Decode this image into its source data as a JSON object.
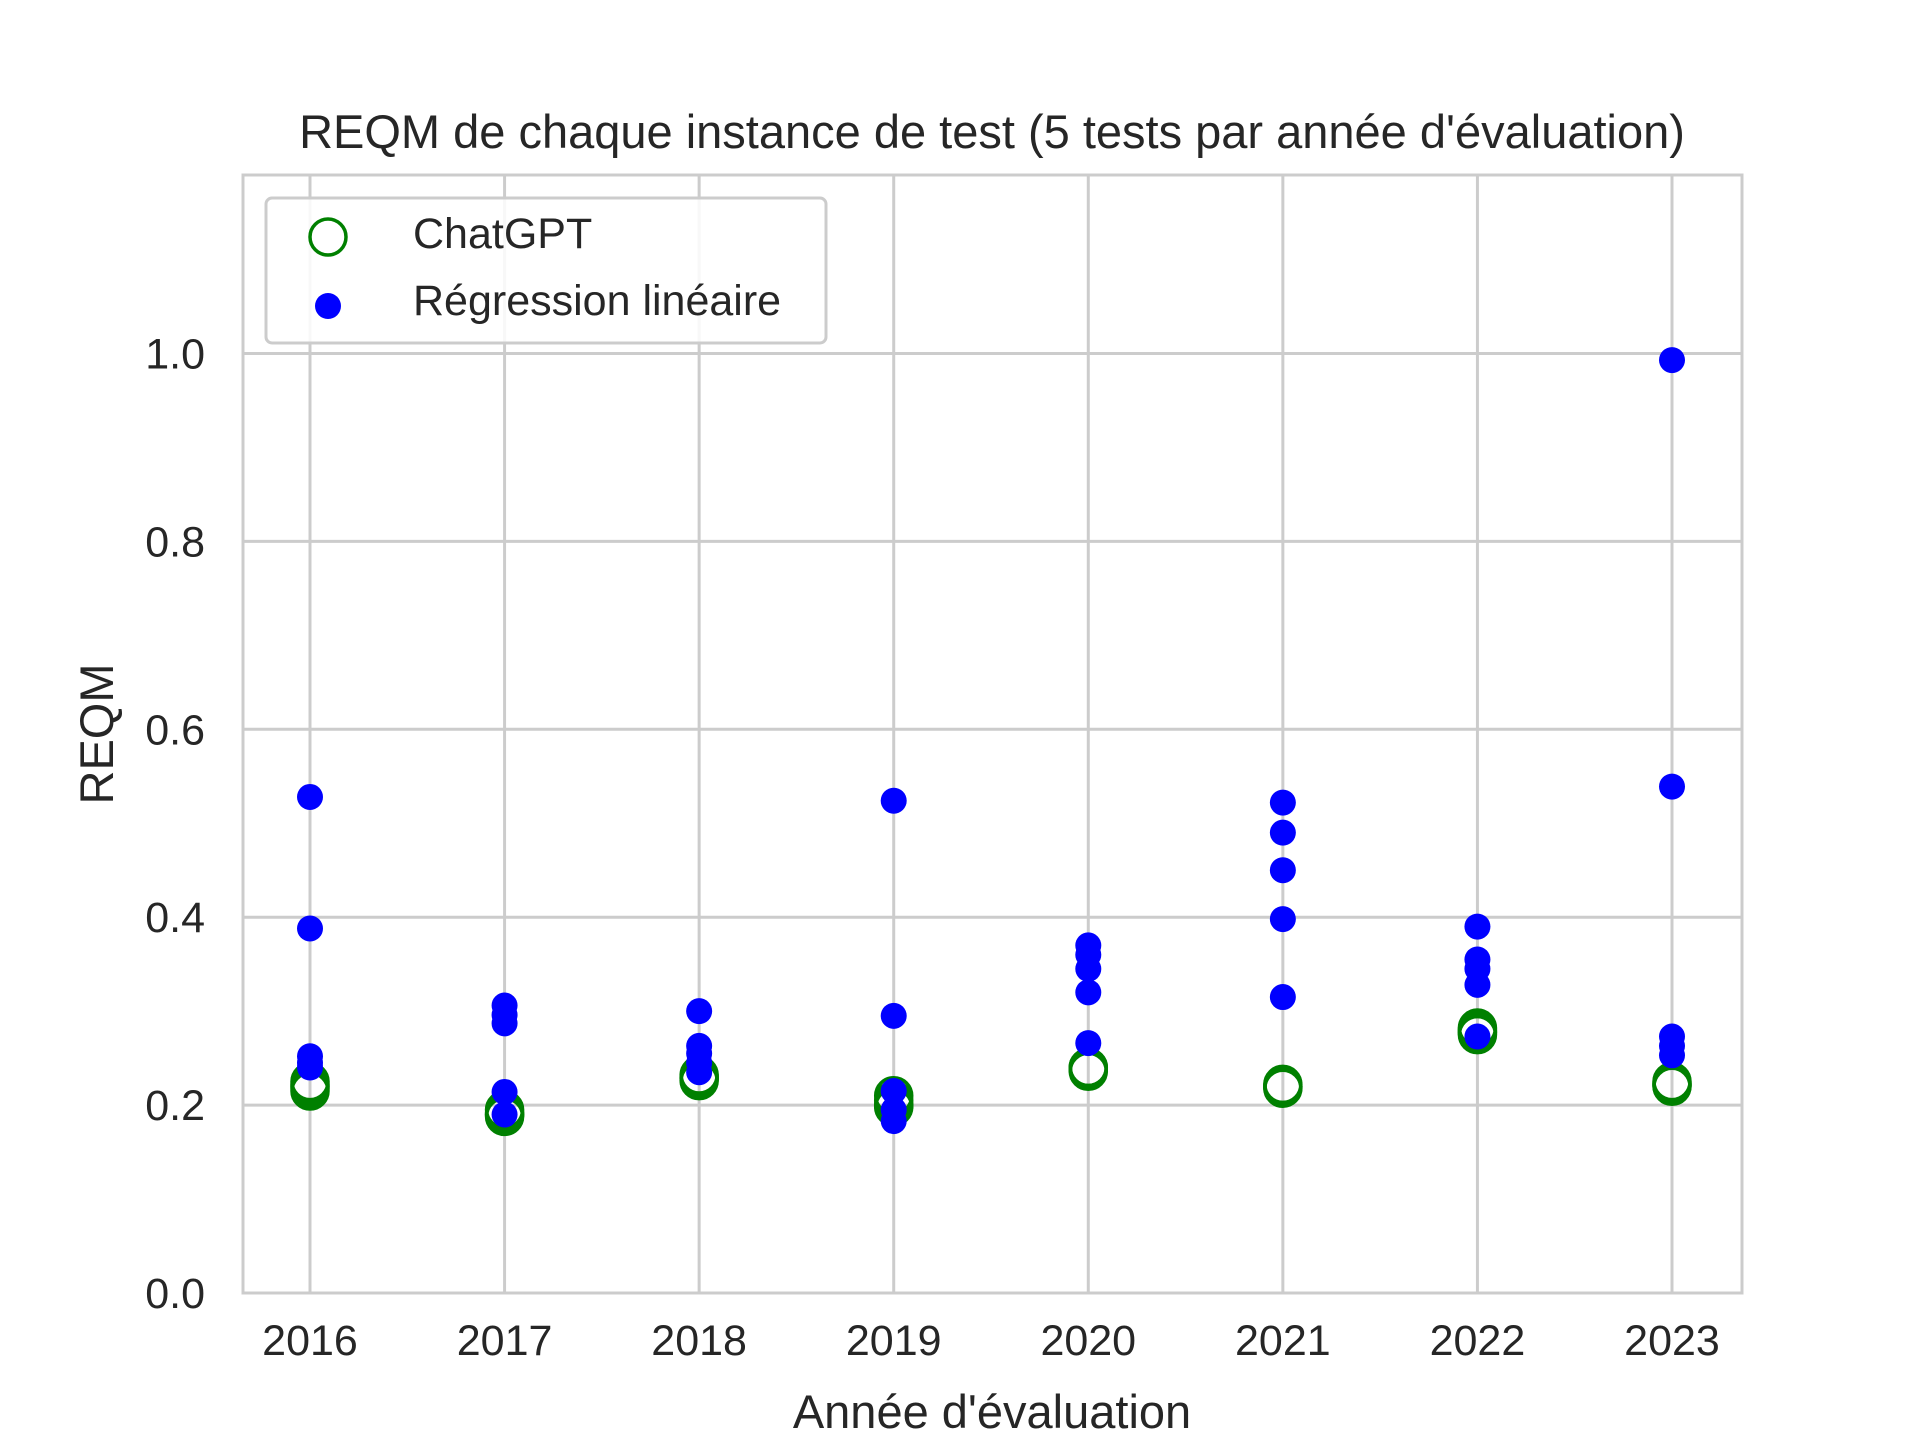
{
  "chart_data": {
    "type": "scatter",
    "title": "REQM de chaque instance de test (5 tests par année d'évaluation)",
    "xlabel": "Année d'évaluation",
    "ylabel": "REQM",
    "categories": [
      "2016",
      "2017",
      "2018",
      "2019",
      "2020",
      "2021",
      "2022",
      "2023"
    ],
    "ylim": [
      0.0,
      1.19
    ],
    "yticks": [
      "0.0",
      "0.2",
      "0.4",
      "0.6",
      "0.8",
      "1.0"
    ],
    "grid": true,
    "legend_position": "top-left",
    "series": [
      {
        "name": "ChatGPT",
        "marker": "open-circle",
        "color": "#008000",
        "values": [
          [
            0.215,
            0.22,
            0.225,
            0.218,
            0.222
          ],
          [
            0.19,
            0.19,
            0.195,
            0.192,
            0.188
          ],
          [
            0.228,
            0.23,
            0.232,
            0.229,
            0.226
          ],
          [
            0.2,
            0.205,
            0.21,
            0.2,
            0.198
          ],
          [
            0.238,
            0.24,
            0.236,
            0.24,
            0.239
          ],
          [
            0.218,
            0.22,
            0.222,
            0.219,
            0.22
          ],
          [
            0.275,
            0.28,
            0.282,
            0.278,
            0.277
          ],
          [
            0.22,
            0.223,
            0.225,
            0.222,
            0.221
          ]
        ]
      },
      {
        "name": "Régression linéaire",
        "marker": "filled-circle",
        "color": "#0000ff",
        "values": [
          [
            0.528,
            0.388,
            0.252,
            0.245,
            0.24
          ],
          [
            0.306,
            0.296,
            0.287,
            0.214,
            0.19
          ],
          [
            0.3,
            0.263,
            0.255,
            0.245,
            0.235
          ],
          [
            0.524,
            0.295,
            0.215,
            0.195,
            0.183
          ],
          [
            0.37,
            0.36,
            0.345,
            0.32,
            0.266
          ],
          [
            0.522,
            0.49,
            0.45,
            0.398,
            0.315
          ],
          [
            0.39,
            0.355,
            0.345,
            0.328,
            0.273
          ],
          [
            0.993,
            0.539,
            0.273,
            0.263,
            0.253
          ]
        ]
      }
    ]
  }
}
